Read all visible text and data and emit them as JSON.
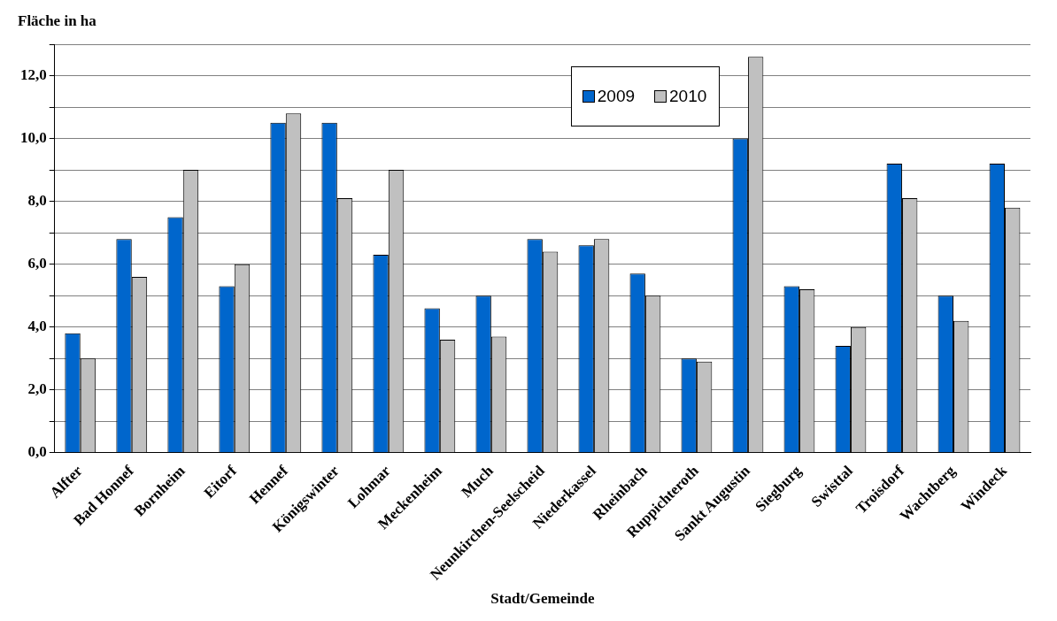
{
  "chart_data": {
    "type": "bar",
    "title": "Fläche in ha",
    "xlabel": "Stadt/Gemeinde",
    "categories": [
      "Alfter",
      "Bad Honnef",
      "Bornheim",
      "Eitorf",
      "Hennef",
      "Königswinter",
      "Lohmar",
      "Meckenheim",
      "Much",
      "Neunkirchen-Seelscheid",
      "Niederkassel",
      "Rheinbach",
      "Ruppichteroth",
      "Sankt Augustin",
      "Siegburg",
      "Swisttal",
      "Troisdorf",
      "Wachtberg",
      "Windeck"
    ],
    "series": [
      {
        "name": "2009",
        "color": "#0066cc",
        "values": [
          3.8,
          6.8,
          7.5,
          5.3,
          10.5,
          10.5,
          6.3,
          4.6,
          5.0,
          6.8,
          6.6,
          5.7,
          3.0,
          10.0,
          5.3,
          3.4,
          9.2,
          5.0,
          9.2
        ]
      },
      {
        "name": "2010",
        "color": "#c0c0c0",
        "values": [
          3.0,
          5.6,
          9.0,
          6.0,
          10.8,
          8.1,
          9.0,
          3.6,
          3.7,
          6.4,
          6.8,
          5.0,
          2.9,
          12.6,
          5.2,
          4.0,
          8.1,
          4.2,
          7.8
        ]
      }
    ],
    "ylim": [
      0,
      13
    ],
    "yticks": [
      {
        "value": 0,
        "label": "0,0"
      },
      {
        "value": 1,
        "label": null
      },
      {
        "value": 2,
        "label": "2,0"
      },
      {
        "value": 3,
        "label": null
      },
      {
        "value": 4,
        "label": "4,0"
      },
      {
        "value": 5,
        "label": null
      },
      {
        "value": 6,
        "label": "6,0"
      },
      {
        "value": 7,
        "label": null
      },
      {
        "value": 8,
        "label": "8,0"
      },
      {
        "value": 9,
        "label": null
      },
      {
        "value": 10,
        "label": "10,0"
      },
      {
        "value": 11,
        "label": null
      },
      {
        "value": 12,
        "label": "12,0"
      },
      {
        "value": 13,
        "label": null
      }
    ],
    "grid": "y",
    "legend": "top"
  }
}
